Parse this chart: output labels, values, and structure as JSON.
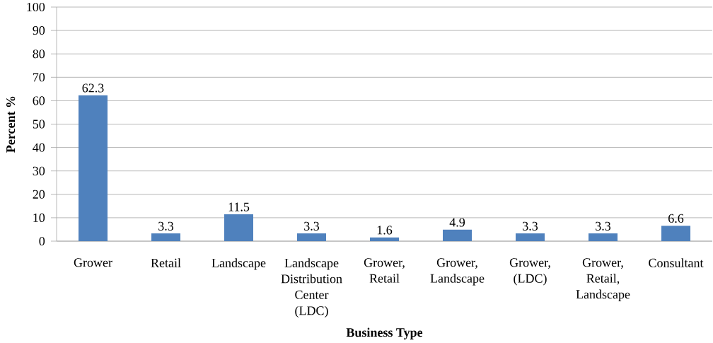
{
  "chart_data": {
    "type": "bar",
    "xlabel": "Business Type",
    "ylabel": "Percent %",
    "categories": [
      "Grower",
      "Retail",
      "Landscape",
      "Landscape Distribution Center (LDC)",
      "Grower, Retail",
      "Grower, Landscape",
      "Grower, (LDC)",
      "Grower, Retail, Landscape",
      "Consultant"
    ],
    "values": [
      62.3,
      3.3,
      11.5,
      3.3,
      1.6,
      4.9,
      3.3,
      3.3,
      6.6
    ],
    "color": "#4f81bd",
    "ylim": [
      0,
      100
    ],
    "yticks": [
      0,
      10,
      20,
      30,
      40,
      50,
      60,
      70,
      80,
      90,
      100
    ],
    "grid": "y",
    "data_labels": true
  }
}
